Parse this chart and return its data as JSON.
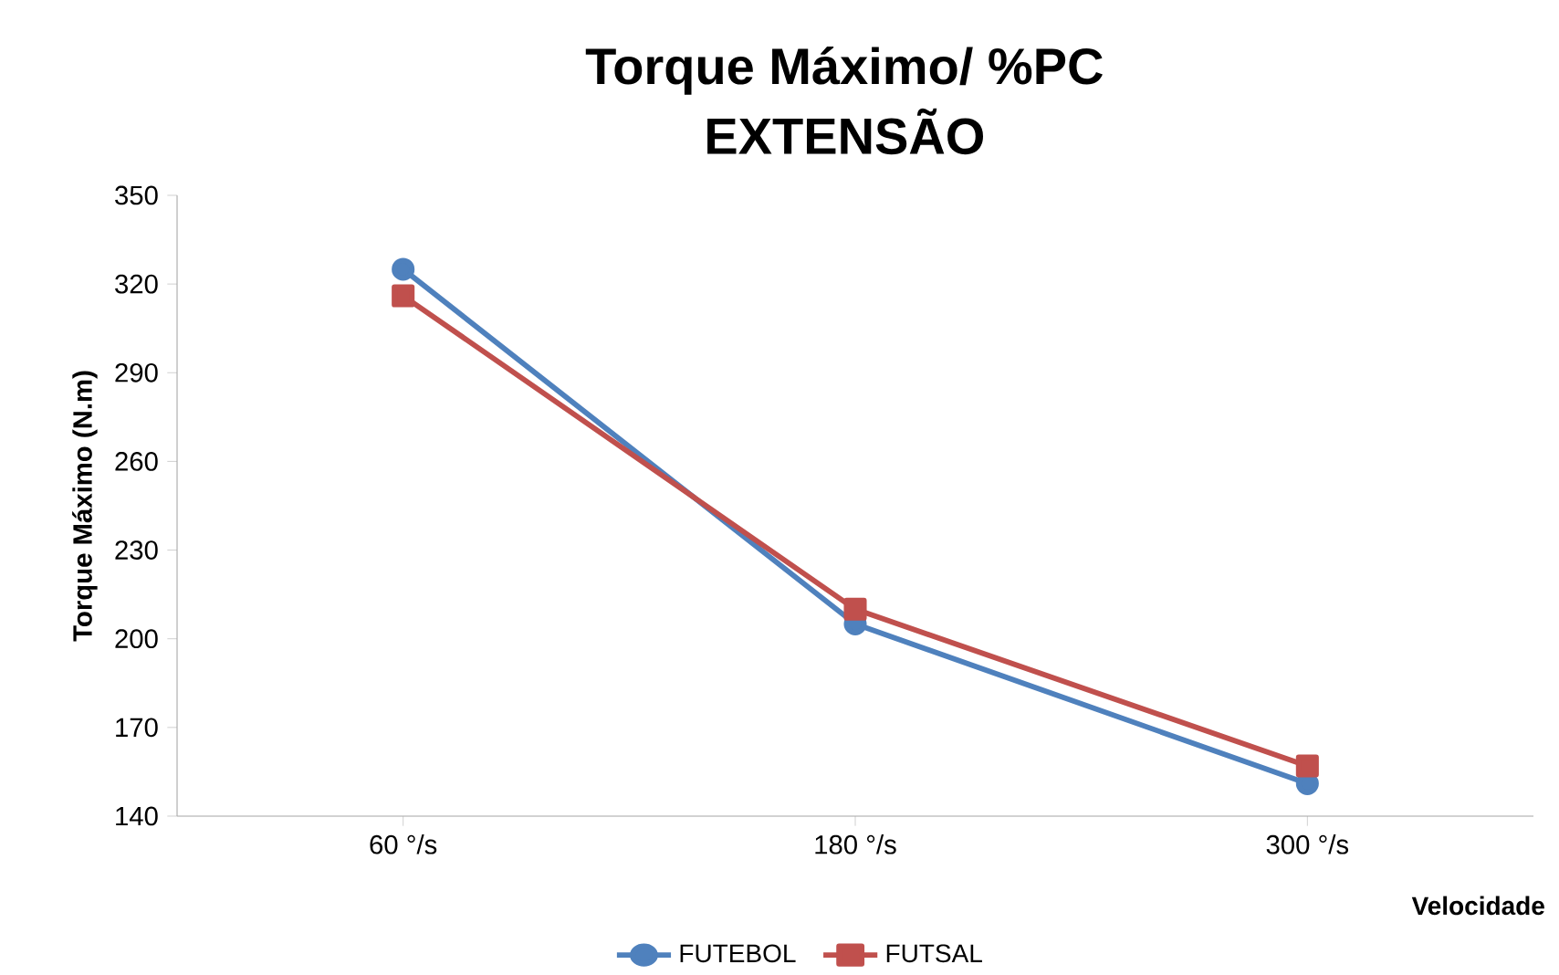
{
  "chart_data": {
    "type": "line",
    "title": "Torque Máximo/ %PC",
    "subtitle": "EXTENSÃO",
    "xlabel": "Velocidade",
    "ylabel": "Torque Máximo (N.m)",
    "categories": [
      "60 °/s",
      "180 °/s",
      "300 °/s"
    ],
    "series": [
      {
        "name": "FUTEBOL",
        "color": "#4f81bd",
        "marker": "circle",
        "values": [
          325,
          205,
          151
        ]
      },
      {
        "name": "FUTSAL",
        "color": "#c0504d",
        "marker": "square",
        "values": [
          316,
          210,
          157
        ]
      }
    ],
    "ylim": [
      140,
      350
    ],
    "yticks": [
      140,
      170,
      200,
      230,
      260,
      290,
      320,
      350
    ],
    "grid": false,
    "legend": "bottom",
    "line_style": "solid"
  }
}
